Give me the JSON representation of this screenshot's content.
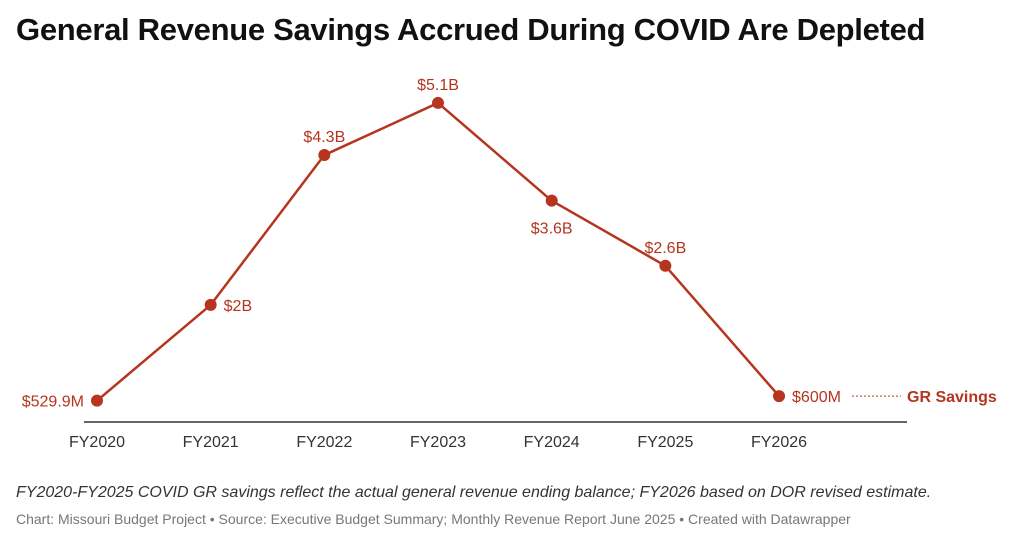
{
  "title": "General Revenue Savings Accrued During COVID Are Depleted",
  "note": "FY2020-FY2025 COVID GR savings reflect the actual general revenue ending balance; FY2026 based on DOR revised estimate.",
  "credit": {
    "chart_by": "Chart: Missouri Budget Project",
    "source": "Source: Executive Budget Summary; Monthly Revenue Report June 2025",
    "created_with": "Created with Datawrapper",
    "separator": " • "
  },
  "colors": {
    "series": "#b5351f",
    "axis": "#333333",
    "credit": "#777777"
  },
  "chart_data": {
    "type": "line",
    "title": "General Revenue Savings Accrued During COVID Are Depleted",
    "xlabel": "",
    "ylabel": "",
    "categories": [
      "FY2020",
      "FY2021",
      "FY2022",
      "FY2023",
      "FY2024",
      "FY2025",
      "FY2026"
    ],
    "ylim": [
      0,
      5.1
    ],
    "grid": false,
    "legend": "inline-right",
    "series": [
      {
        "name": "GR Savings",
        "values": [
          0.5299,
          2.0,
          4.3,
          5.1,
          3.6,
          2.6,
          0.6
        ],
        "labels": [
          "$529.9M",
          "$2B",
          "$4.3B",
          "$5.1B",
          "$3.6B",
          "$2.6B",
          "$600M"
        ],
        "label_positions": [
          "left",
          "right",
          "above",
          "above",
          "below",
          "above",
          "right"
        ]
      }
    ]
  }
}
